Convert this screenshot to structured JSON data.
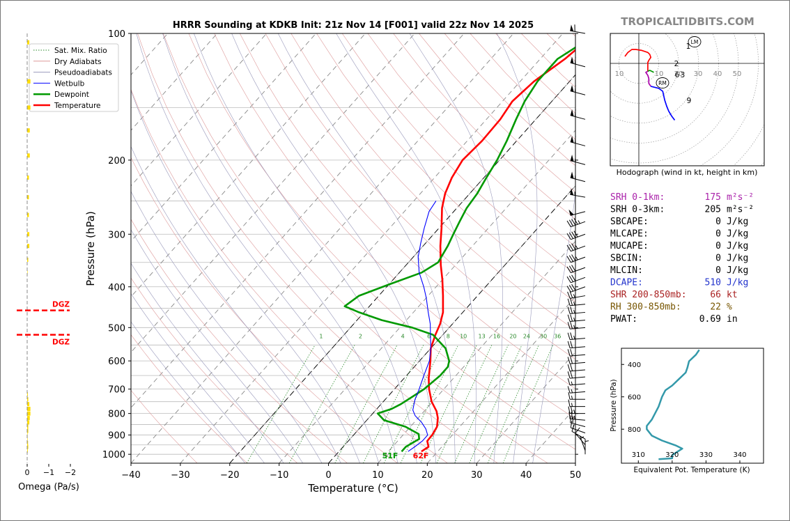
{
  "site": "TROPICALTIDBITS.COM",
  "title": "HRRR Sounding at KDKB Init: 21z Nov 14 [F001] valid 22z Nov 14 2025",
  "chart_data": [
    {
      "type": "line",
      "name": "skewt",
      "xlabel": "Temperature (°C)",
      "ylabel": "Pressure (hPa)",
      "xlim": [
        -40,
        50
      ],
      "ylim": [
        1050,
        100
      ],
      "y_scale": "log",
      "x_ticks": [
        -40,
        -30,
        -20,
        -10,
        0,
        10,
        20,
        30,
        40,
        50
      ],
      "y_ticks": [
        100,
        200,
        300,
        400,
        500,
        600,
        700,
        800,
        900,
        1000
      ],
      "grid": true,
      "legend_position": "top-left",
      "legend": [
        "Sat. Mix. Ratio",
        "Dry Adiabats",
        "Pseudoadiabats",
        "Wetbulb",
        "Dewpoint",
        "Temperature"
      ],
      "mixing_ratio_labels": [
        "1",
        "2",
        "4",
        "6",
        "8",
        "10",
        "13",
        "16",
        "20",
        "24",
        "30",
        "36"
      ],
      "surface_temp_label": "62F",
      "surface_dew_label": "51F",
      "series": [
        {
          "name": "Temperature",
          "color": "#ff0000",
          "points": [
            [
              16.7,
              985
            ],
            [
              17.3,
              960
            ],
            [
              16.0,
              930
            ],
            [
              15.9,
              900
            ],
            [
              15.4,
              860
            ],
            [
              14.0,
              820
            ],
            [
              12.5,
              790
            ],
            [
              9.8,
              750
            ],
            [
              7.0,
              700
            ],
            [
              5.0,
              660
            ],
            [
              2.2,
              600
            ],
            [
              0.0,
              560
            ],
            [
              -1.5,
              520
            ],
            [
              -2.5,
              490
            ],
            [
              -4.0,
              460
            ],
            [
              -7.0,
              420
            ],
            [
              -10.0,
              385
            ],
            [
              -13.0,
              355
            ],
            [
              -16.5,
              320
            ],
            [
              -19.5,
              290
            ],
            [
              -23.0,
              260
            ],
            [
              -25.0,
              240
            ],
            [
              -26.5,
              220
            ],
            [
              -27.5,
              200
            ],
            [
              -27.0,
              180
            ],
            [
              -27.2,
              160
            ],
            [
              -28.0,
              145
            ],
            [
              -27.2,
              130
            ],
            [
              -25.0,
              115
            ],
            [
              -23.5,
              100
            ]
          ]
        },
        {
          "name": "Dewpoint",
          "color": "#009900",
          "points": [
            [
              12.7,
              985
            ],
            [
              12.7,
              960
            ],
            [
              13.3,
              940
            ],
            [
              14.0,
              920
            ],
            [
              13.0,
              895
            ],
            [
              9.0,
              860
            ],
            [
              3.5,
              830
            ],
            [
              1.0,
              800
            ],
            [
              3.0,
              780
            ],
            [
              4.0,
              760
            ],
            [
              5.0,
              730
            ],
            [
              6.0,
              700
            ],
            [
              6.8,
              650
            ],
            [
              6.8,
              620
            ],
            [
              6.0,
              600
            ],
            [
              3.0,
              560
            ],
            [
              -2.0,
              520
            ],
            [
              -7.5,
              500
            ],
            [
              -15.0,
              480
            ],
            [
              -21.0,
              460
            ],
            [
              -25.0,
              445
            ],
            [
              -24.0,
              420
            ],
            [
              -20.0,
              395
            ],
            [
              -15.5,
              370
            ],
            [
              -14.0,
              350
            ],
            [
              -15.0,
              320
            ],
            [
              -16.0,
              300
            ],
            [
              -17.0,
              280
            ],
            [
              -18.0,
              260
            ],
            [
              -18.5,
              240
            ],
            [
              -19.5,
              220
            ],
            [
              -20.5,
              200
            ],
            [
              -22.0,
              180
            ],
            [
              -24.0,
              160
            ],
            [
              -25.5,
              145
            ],
            [
              -26.5,
              130
            ],
            [
              -26.5,
              115
            ],
            [
              -23.0,
              100
            ]
          ]
        },
        {
          "name": "Wetbulb",
          "color": "#0000ff",
          "points": [
            [
              14.0,
              985
            ],
            [
              14.5,
              960
            ],
            [
              15.0,
              930
            ],
            [
              15.0,
              900
            ],
            [
              13.5,
              870
            ],
            [
              11.5,
              840
            ],
            [
              9.0,
              810
            ],
            [
              7.5,
              785
            ],
            [
              7.0,
              770
            ],
            [
              6.0,
              740
            ],
            [
              5.0,
              700
            ],
            [
              3.5,
              650
            ],
            [
              2.0,
              600
            ],
            [
              0.0,
              560
            ],
            [
              -2.5,
              520
            ],
            [
              -4.5,
              490
            ],
            [
              -7.0,
              460
            ],
            [
              -10.0,
              425
            ],
            [
              -12.5,
              400
            ],
            [
              -16.0,
              370
            ],
            [
              -19.0,
              340
            ],
            [
              -21.0,
              315
            ],
            [
              -23.0,
              290
            ],
            [
              -25.0,
              265
            ],
            [
              -25.5,
              250
            ]
          ]
        }
      ]
    },
    {
      "type": "line",
      "name": "hodograph",
      "caption": "Hodograph (wind in kt, height in km)",
      "ring_labels": [
        "10",
        "10",
        "20",
        "30",
        "40",
        "50"
      ],
      "markers": [
        "LM",
        "RM"
      ],
      "height_labels": [
        "1",
        "2",
        "3",
        "6",
        "9"
      ],
      "series": [
        {
          "name": "0-1 km",
          "color": "#ff0000",
          "points": [
            [
              -14,
              7
            ],
            [
              -11,
              11
            ],
            [
              -7,
              14
            ],
            [
              -3,
              14
            ],
            [
              3,
              13
            ],
            [
              9,
              11
            ],
            [
              11,
              9
            ],
            [
              12,
              6
            ],
            [
              10,
              3
            ],
            [
              9,
              1
            ],
            [
              9,
              -2
            ],
            [
              9,
              -5
            ],
            [
              9,
              -8
            ]
          ]
        },
        {
          "name": "1-3 km",
          "color": "#009900",
          "points": [
            [
              9,
              -8
            ],
            [
              11,
              -7
            ],
            [
              13,
              -8
            ],
            [
              15,
              -9
            ]
          ]
        },
        {
          "name": "3-6 km",
          "color": "#aa00aa",
          "points": [
            [
              9,
              -8
            ],
            [
              7,
              -9
            ],
            [
              9,
              -12
            ],
            [
              10,
              -15
            ],
            [
              10,
              -20
            ],
            [
              12,
              -23
            ]
          ]
        },
        {
          "name": "6-9 km",
          "color": "#0000ff",
          "points": [
            [
              12,
              -23
            ],
            [
              20,
              -25
            ],
            [
              24,
              -28
            ],
            [
              26,
              -37
            ],
            [
              28,
              -43
            ],
            [
              30,
              -48
            ],
            [
              33,
              -53
            ],
            [
              36,
              -57
            ]
          ]
        }
      ]
    },
    {
      "type": "line",
      "name": "theta-e",
      "xlabel": "Equivalent Pot. Temperature (K)",
      "ylabel": "Pressure (hPa)",
      "xlim": [
        305,
        347
      ],
      "ylim": [
        1010,
        300
      ],
      "x_ticks": [
        310,
        320,
        330,
        340
      ],
      "y_ticks": [
        400,
        600,
        800
      ],
      "series": [
        {
          "name": "Theta-e",
          "color": "#3399aa",
          "points": [
            [
              316,
              985
            ],
            [
              320,
              980
            ],
            [
              320,
              960
            ],
            [
              321.5,
              940
            ],
            [
              323,
              920
            ],
            [
              321,
              900
            ],
            [
              317,
              870
            ],
            [
              314,
              840
            ],
            [
              312.5,
              800
            ],
            [
              312.5,
              780
            ],
            [
              314,
              740
            ],
            [
              316,
              660
            ],
            [
              317,
              600
            ],
            [
              318,
              560
            ],
            [
              320,
              530
            ],
            [
              322,
              490
            ],
            [
              324,
              450
            ],
            [
              324.5,
              420
            ],
            [
              325,
              380
            ],
            [
              327,
              340
            ],
            [
              328,
              310
            ]
          ]
        }
      ]
    },
    {
      "type": "bar",
      "name": "omega",
      "xlabel": "Omega (Pa/s)",
      "x_ticks": [
        "0",
        "−1",
        "−2"
      ],
      "dgz_labels": [
        "DGZ",
        "DGZ"
      ],
      "dgz_pressures": [
        455,
        520
      ],
      "levels": [
        105,
        130,
        150,
        170,
        195,
        220,
        245,
        270,
        300,
        320,
        345,
        370,
        390,
        410,
        430,
        455,
        480,
        500,
        520,
        540,
        560,
        580,
        600,
        620,
        640,
        660,
        680,
        700,
        720,
        740,
        760,
        780,
        800,
        820,
        840,
        860,
        880,
        900,
        920,
        940,
        960,
        980,
        1000
      ],
      "values": [
        -0.1,
        -0.15,
        -0.15,
        -0.12,
        -0.12,
        -0.08,
        -0.08,
        -0.08,
        -0.1,
        -0.1,
        -0.05,
        -0.02,
        0,
        0,
        0,
        0,
        0,
        0,
        0,
        0,
        0,
        0,
        0,
        0,
        0,
        0,
        0,
        0,
        -0.03,
        -0.05,
        -0.1,
        -0.15,
        -0.15,
        -0.12,
        -0.1,
        -0.05,
        -0.05,
        -0.02,
        -0.02,
        -0.04,
        -0.05,
        -0.03,
        -0.01
      ]
    }
  ],
  "wind_barbs": {
    "levels": [
      100,
      120,
      140,
      160,
      185,
      205,
      225,
      245,
      265,
      280,
      300,
      320,
      340,
      360,
      380,
      400,
      420,
      440,
      460,
      480,
      500,
      530,
      555,
      580,
      605,
      630,
      655,
      680,
      710,
      740,
      770,
      800,
      830,
      860,
      890,
      920,
      950,
      980,
      1000
    ],
    "speed_kt": [
      60,
      60,
      60,
      60,
      60,
      55,
      55,
      55,
      50,
      45,
      40,
      35,
      35,
      30,
      30,
      30,
      25,
      25,
      25,
      25,
      25,
      25,
      20,
      20,
      20,
      20,
      20,
      15,
      15,
      15,
      15,
      25,
      25,
      20,
      15,
      10,
      10,
      5,
      5
    ],
    "dir_deg": [
      280,
      285,
      285,
      285,
      285,
      285,
      285,
      280,
      255,
      250,
      250,
      250,
      250,
      250,
      250,
      250,
      260,
      265,
      265,
      265,
      265,
      265,
      265,
      265,
      265,
      265,
      265,
      265,
      265,
      270,
      270,
      270,
      275,
      285,
      290,
      300,
      320,
      340,
      360
    ]
  },
  "indices": [
    {
      "label": "SRH 0-1km:",
      "value": "175",
      "unit": "m²s⁻²",
      "color": "#aa22aa"
    },
    {
      "label": "SRH 0-3km:",
      "value": "205",
      "unit": "m²s⁻²",
      "color": "#000000"
    },
    {
      "label": "SBCAPE:",
      "value": "0",
      "unit": "J/kg",
      "color": "#000000"
    },
    {
      "label": "MLCAPE:",
      "value": "0",
      "unit": "J/kg",
      "color": "#000000"
    },
    {
      "label": "MUCAPE:",
      "value": "0",
      "unit": "J/kg",
      "color": "#000000"
    },
    {
      "label": "SBCIN:",
      "value": "0",
      "unit": "J/kg",
      "color": "#000000"
    },
    {
      "label": "MLCIN:",
      "value": "0",
      "unit": "J/kg",
      "color": "#000000"
    },
    {
      "label": "DCAPE:",
      "value": "510",
      "unit": "J/kg",
      "color": "#2233cc"
    },
    {
      "label": "SHR 200-850mb:",
      "value": "66",
      "unit": "kt",
      "color": "#aa2222"
    },
    {
      "label": "RH 300-850mb:",
      "value": "22",
      "unit": "%",
      "color": "#775500"
    },
    {
      "label": "PWAT:",
      "value": "0.69",
      "unit": "in",
      "color": "#000000"
    }
  ]
}
